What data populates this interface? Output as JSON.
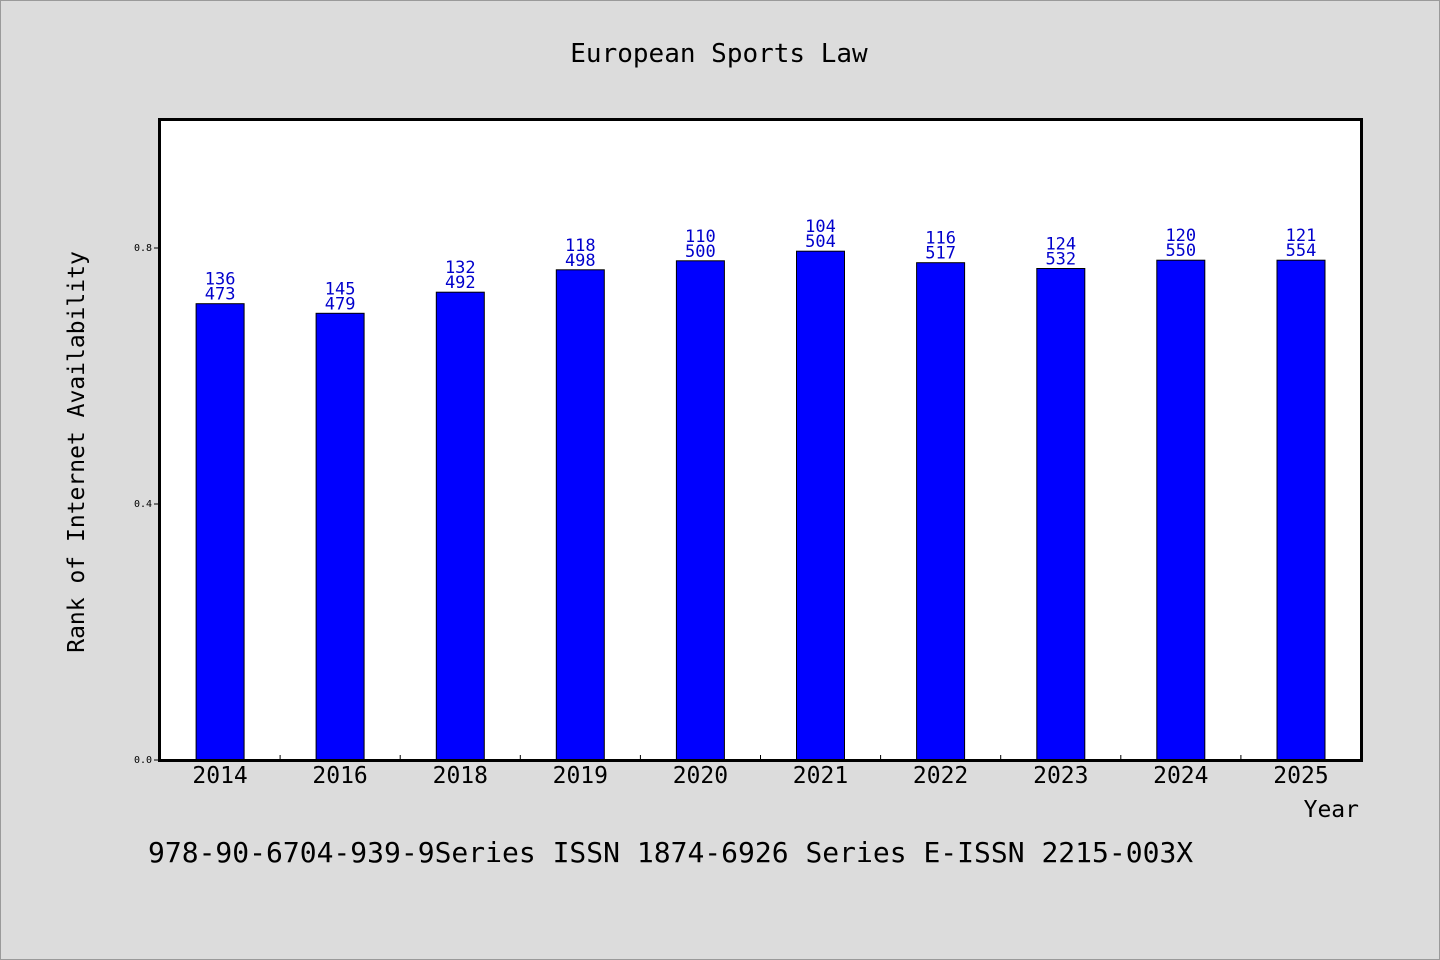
{
  "chart_data": {
    "type": "bar",
    "title": "European Sports Law",
    "xlabel": "Year",
    "ylabel": "Rank of Internet Availability",
    "footer": "978-90-6704-939-9Series ISSN 1874-6926 Series E-ISSN 2215-003X",
    "categories": [
      "2014",
      "2016",
      "2018",
      "2019",
      "2020",
      "2021",
      "2022",
      "2023",
      "2024",
      "2025"
    ],
    "values": [
      0.713,
      0.698,
      0.731,
      0.766,
      0.78,
      0.795,
      0.777,
      0.768,
      0.781,
      0.781
    ],
    "label_top": [
      "136",
      "145",
      "132",
      "118",
      "110",
      "104",
      "116",
      "124",
      "120",
      "121"
    ],
    "label_bottom": [
      "473",
      "479",
      "492",
      "498",
      "500",
      "504",
      "517",
      "532",
      "550",
      "554"
    ],
    "ylim": [
      0,
      1.0
    ],
    "yticks": [
      "0.0",
      "0.4",
      "0.8"
    ],
    "ytick_values": [
      0,
      0.4,
      0.8
    ],
    "grid": false,
    "legend": "none",
    "colors": {
      "bar": "#0000ff",
      "bar_edge": "#000000",
      "data_label": "#0000cc",
      "plot_bg": "#ffffff",
      "page_bg": "#dcdcdc"
    }
  }
}
